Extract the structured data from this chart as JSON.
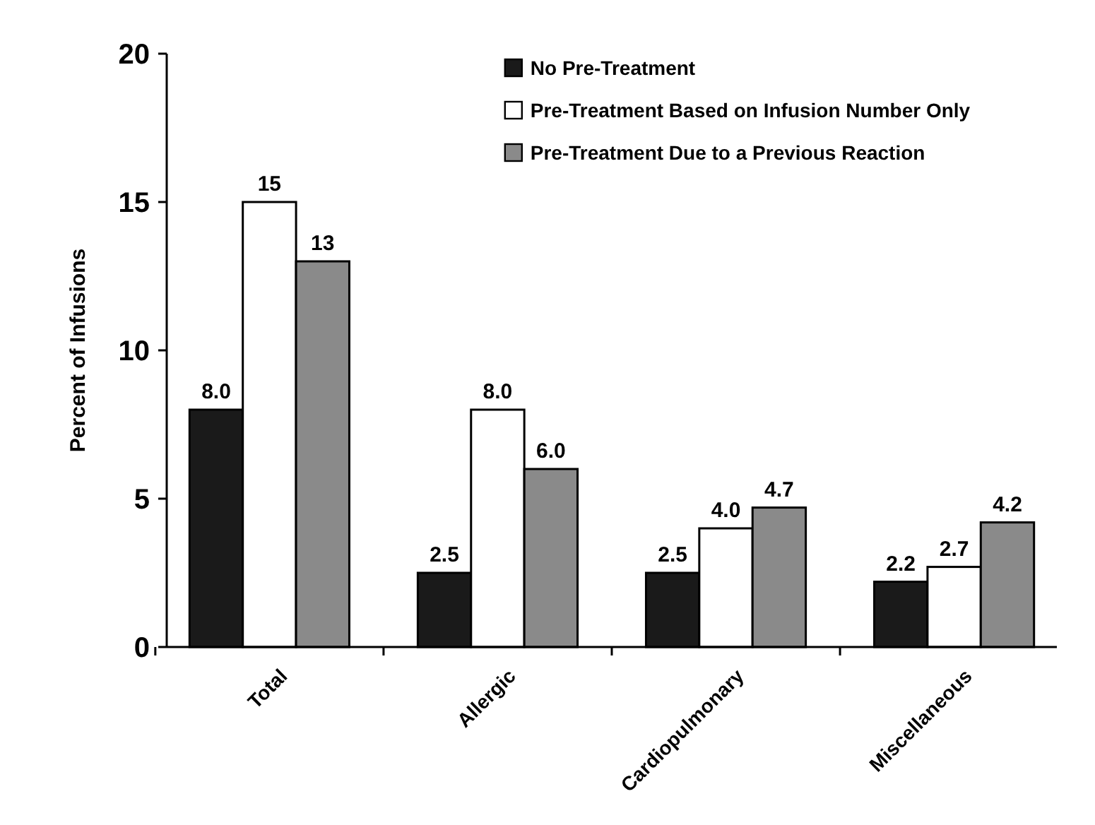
{
  "chart_data": {
    "type": "bar",
    "ylabel": "Percent of Infusions",
    "categories": [
      "Total",
      "Allergic",
      "Cardiopulmonary",
      "Miscellaneous"
    ],
    "series": [
      {
        "name": "No Pre-Treatment",
        "color": "#1a1a1a",
        "values": [
          8.0,
          2.5,
          2.5,
          2.2
        ],
        "value_labels": [
          "8.0",
          "2.5",
          "2.5",
          "2.2"
        ]
      },
      {
        "name": "Pre-Treatment Based on Infusion Number Only",
        "color": "#ffffff",
        "values": [
          15,
          8.0,
          4.0,
          2.7
        ],
        "value_labels": [
          "15",
          "8.0",
          "4.0",
          "2.7"
        ]
      },
      {
        "name": "Pre-Treatment Due to a Previous Reaction",
        "color": "#8a8a8a",
        "values": [
          13,
          6.0,
          4.7,
          4.2
        ],
        "value_labels": [
          "13",
          "6.0",
          "4.7",
          "4.2"
        ]
      }
    ],
    "ylim": [
      0,
      20
    ],
    "yticks": [
      0,
      5,
      10,
      15,
      20
    ],
    "grid": false,
    "legend": "top right"
  }
}
